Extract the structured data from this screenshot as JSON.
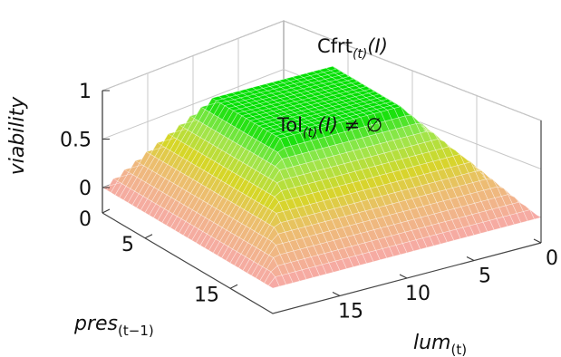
{
  "chart_data": {
    "type": "surface3d",
    "z_label": "viability",
    "x_label": {
      "base": "lum",
      "sub": "(t)"
    },
    "y_label": {
      "base": "pres",
      "sub": "(t−1)"
    },
    "x_ticks": [
      "0",
      "5",
      "10",
      "15"
    ],
    "y_ticks": [
      "0",
      "5",
      "15"
    ],
    "z_ticks": [
      "0",
      "0.5",
      "1"
    ],
    "xlim": [
      0,
      20
    ],
    "ylim": [
      0,
      20
    ],
    "zlim": [
      0,
      1
    ],
    "surface": {
      "x_trapezoid": [
        0,
        5,
        14,
        20
      ],
      "y_trapezoid": [
        0,
        5,
        13,
        20
      ],
      "floor_color": "#f7a9a8",
      "peak_color": "#00e000"
    },
    "annotations": [
      {
        "base": "Cfrt",
        "sub": "(t)",
        "rest": "(I)",
        "at_level": 1.0
      },
      {
        "base": "Tol",
        "sub": "(t)",
        "rest": "(I) ≠ ∅",
        "at_level": 0.45
      }
    ]
  }
}
